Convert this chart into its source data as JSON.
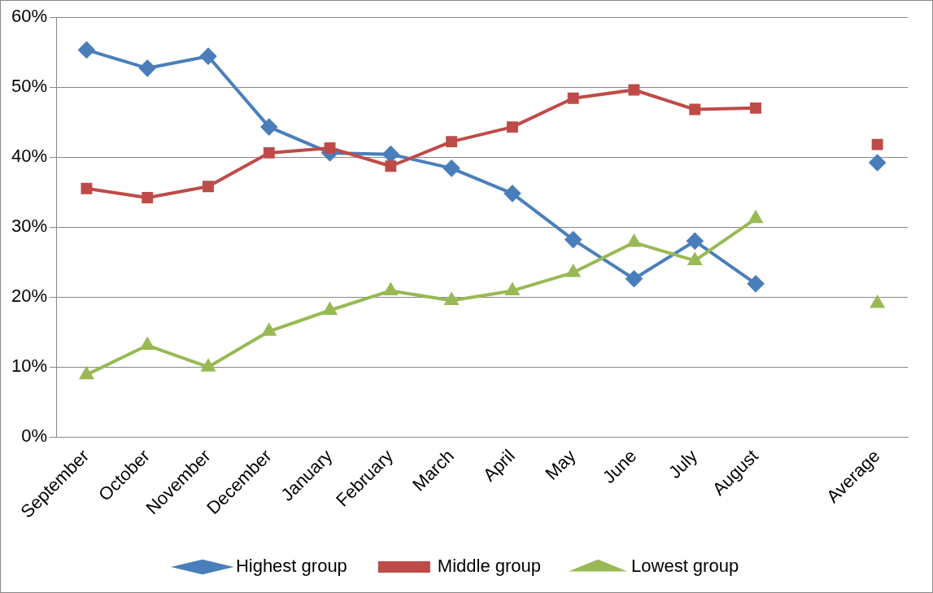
{
  "chart_data": {
    "type": "line",
    "categories": [
      "September",
      "October",
      "November",
      "December",
      "January",
      "February",
      "March",
      "April",
      "May",
      "June",
      "July",
      "August",
      null,
      "Average"
    ],
    "series": [
      {
        "name": "Highest group",
        "color": "#4a7ebb",
        "marker": "diamond",
        "values": [
          55.3,
          52.7,
          54.4,
          44.3,
          40.6,
          40.4,
          38.4,
          34.8,
          28.2,
          22.6,
          28.0,
          21.9,
          null,
          39.2
        ]
      },
      {
        "name": "Middle group",
        "color": "#be4b48",
        "marker": "square",
        "values": [
          35.5,
          34.2,
          35.8,
          40.6,
          41.3,
          38.7,
          42.2,
          44.3,
          48.4,
          49.6,
          46.8,
          47.0,
          null,
          41.8
        ]
      },
      {
        "name": "Lowest group",
        "color": "#98b954",
        "marker": "triangle",
        "values": [
          8.9,
          13.1,
          10.0,
          15.1,
          18.1,
          20.9,
          19.5,
          20.9,
          23.5,
          27.8,
          25.2,
          31.2,
          null,
          19.1
        ]
      }
    ],
    "ylim": [
      0,
      60
    ],
    "yticks": [
      {
        "value": 0,
        "label": "0%"
      },
      {
        "value": 10,
        "label": "10%"
      },
      {
        "value": 20,
        "label": "20%"
      },
      {
        "value": 30,
        "label": "30%"
      },
      {
        "value": 40,
        "label": "40%"
      },
      {
        "value": 50,
        "label": "50%"
      },
      {
        "value": 60,
        "label": "60%"
      }
    ],
    "grid": "y",
    "legend": "bottom",
    "line_style": "solid"
  }
}
